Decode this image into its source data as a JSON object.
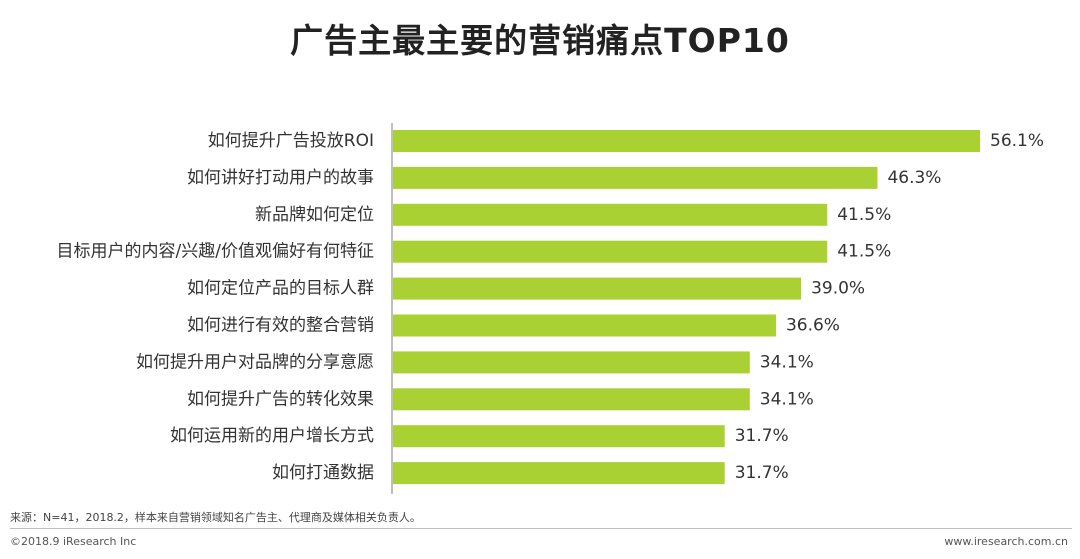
{
  "chart_data": {
    "type": "bar",
    "orientation": "horizontal",
    "title": "广告主最主要的营销痛点TOP10",
    "categories": [
      "如何提升广告投放ROI",
      "如何讲好打动用户的故事",
      "新品牌如何定位",
      "目标用户的内容/兴趣/价值观偏好有何特征",
      "如何定位产品的目标人群",
      "如何进行有效的整合营销",
      "如何提升用户对品牌的分享意愿",
      "如何提升广告的转化效果",
      "如何运用新的用户增长方式",
      "如何打通数据"
    ],
    "values": [
      56.1,
      46.3,
      41.5,
      41.5,
      39.0,
      36.6,
      34.1,
      34.1,
      31.7,
      31.7
    ],
    "value_labels": [
      "56.1%",
      "46.3%",
      "41.5%",
      "41.5%",
      "39.0%",
      "36.6%",
      "34.1%",
      "34.1%",
      "31.7%",
      "31.7%"
    ],
    "unit": "%",
    "xlim": [
      0,
      56.1
    ],
    "bar_color": "#a9d134",
    "grid": false
  },
  "source_note": "来源：N=41，2018.2，样本来自营销领域知名广告主、代理商及媒体相关负责人。",
  "copyright": "©2018.9 iResearch Inc",
  "website": "www.iresearch.com.cn"
}
